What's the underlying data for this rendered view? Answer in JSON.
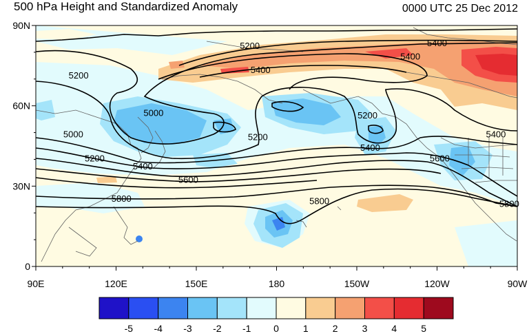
{
  "title_left": "500 hPa Height and Standardized Anomaly",
  "title_right": "0000 UTC 25 Dec 2012",
  "lat_labels": [
    "90N",
    "60N",
    "30N",
    "0"
  ],
  "lon_labels": [
    "90E",
    "120E",
    "150E",
    "180",
    "150W",
    "120W",
    "90W"
  ],
  "contour_labels": [
    {
      "text": "5200",
      "lon": 170,
      "lat": 82
    },
    {
      "text": "5400",
      "lon": 240,
      "lat": 83
    },
    {
      "text": "5400",
      "lon": 230,
      "lat": 78
    },
    {
      "text": "5400",
      "lon": 174,
      "lat": 73
    },
    {
      "text": "5200",
      "lon": 106,
      "lat": 71
    },
    {
      "text": "5000",
      "lon": 134,
      "lat": 57
    },
    {
      "text": "5000",
      "lon": 104,
      "lat": 49
    },
    {
      "text": "5200",
      "lon": 214,
      "lat": 56
    },
    {
      "text": "5200",
      "lon": 173,
      "lat": 48
    },
    {
      "text": "5200",
      "lon": 112,
      "lat": 40
    },
    {
      "text": "5400",
      "lon": 130,
      "lat": 37
    },
    {
      "text": "5400",
      "lon": 215,
      "lat": 44
    },
    {
      "text": "5400",
      "lon": 262,
      "lat": 49
    },
    {
      "text": "5600",
      "lon": 241,
      "lat": 40
    },
    {
      "text": "5600",
      "lon": 147,
      "lat": 32
    },
    {
      "text": "5800",
      "lon": 122,
      "lat": 25
    },
    {
      "text": "5800",
      "lon": 196,
      "lat": 24
    },
    {
      "text": "5800",
      "lon": 267,
      "lat": 23
    }
  ],
  "colorbar": {
    "labels": [
      "-5",
      "-4",
      "-3",
      "-2",
      "-1",
      "0",
      "1",
      "2",
      "3",
      "4",
      "5"
    ],
    "colors": [
      "#1f12c8",
      "#2a4ff2",
      "#3c84f0",
      "#6ac4f4",
      "#a4e4fa",
      "#e2fbfd",
      "#fffbe2",
      "#f9cc91",
      "#f5a171",
      "#f34f48",
      "#e52c31",
      "#9e0a1e"
    ]
  },
  "colors": {
    "land_coast": "#606060",
    "contour": "#000000",
    "grid": "#000000"
  }
}
